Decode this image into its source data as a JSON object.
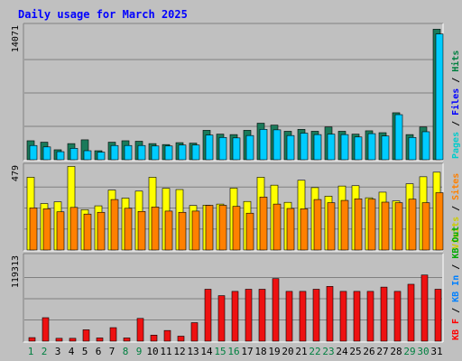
{
  "chart_data": {
    "title": "Daily usage for March 2025",
    "type": "bar",
    "categories": [
      "1",
      "2",
      "3",
      "4",
      "5",
      "6",
      "7",
      "8",
      "9",
      "10",
      "11",
      "12",
      "13",
      "14",
      "15",
      "16",
      "17",
      "18",
      "19",
      "20",
      "21",
      "22",
      "23",
      "24",
      "25",
      "26",
      "27",
      "28",
      "29",
      "30",
      "31"
    ],
    "weekend_days": [
      "1",
      "2",
      "8",
      "9",
      "15",
      "16",
      "22",
      "23",
      "29",
      "30"
    ],
    "panels": [
      {
        "name": "hits-files-pages",
        "max_label": "14071",
        "ylim": [
          0,
          14071
        ],
        "axis_labels": [
          {
            "text": "Pages",
            "color": "#00cccc"
          },
          {
            "text": "Files",
            "color": "#0000ff"
          },
          {
            "text": "Hits",
            "color": "#008040"
          }
        ],
        "series": [
          {
            "name": "Hits",
            "color": "#1a7a5a",
            "values": [
              2000,
              1850,
              1050,
              1700,
              2100,
              950,
              1850,
              2000,
              1950,
              1700,
              1600,
              1800,
              1750,
              3100,
              2700,
              2650,
              3100,
              3850,
              3650,
              3000,
              3200,
              3000,
              3450,
              3000,
              2700,
              3050,
              2850,
              4950,
              2650,
              3450,
              13750
            ]
          },
          {
            "name": "Files",
            "color": "#00ccff",
            "values": [
              1500,
              1350,
              850,
              1200,
              950,
              800,
              1500,
              1500,
              1500,
              1450,
              1450,
              1550,
              1550,
              2600,
              2350,
              2300,
              2550,
              3200,
              3150,
              2550,
              2800,
              2650,
              2700,
              2650,
              2400,
              2750,
              2500,
              4750,
              2350,
              2950,
              13250
            ]
          }
        ]
      },
      {
        "name": "visits-sites",
        "max_label": "479",
        "ylim": [
          0,
          479
        ],
        "axis_labels": [
          {
            "text": "Visits",
            "color": "#cccc00"
          },
          {
            "text": "Sites",
            "color": "#ff8000"
          }
        ],
        "series": [
          {
            "name": "Visits",
            "color": "#ffff00",
            "values": [
              415,
              265,
              275,
              477,
              230,
              252,
              342,
              296,
              336,
              415,
              352,
              345,
              254,
              256,
              262,
              353,
              277,
              415,
              370,
              272,
              398,
              356,
              307,
              365,
              367,
              298,
              330,
              280,
              378,
              418,
              444
            ]
          },
          {
            "name": "Sites",
            "color": "#ff8000",
            "values": [
              240,
              235,
              218,
              243,
              205,
              215,
              288,
              238,
              220,
              245,
              222,
              215,
              222,
              255,
              255,
              249,
              210,
              302,
              262,
              237,
              235,
              288,
              270,
              283,
              292,
              290,
              273,
              270,
              290,
              270,
              327
            ]
          }
        ]
      },
      {
        "name": "kbf",
        "max_label": "119313",
        "ylim": [
          0,
          119313
        ],
        "axis_labels": [
          {
            "text": "KB F",
            "color": "#ff0000"
          },
          {
            "text": "KB In",
            "color": "#0080ff"
          },
          {
            "text": "KB Out",
            "color": "#00aa00"
          }
        ],
        "series": [
          {
            "name": "KB F",
            "color": "#ee1111",
            "values": [
              5000,
              33000,
              4000,
              4000,
              16000,
              4500,
              19000,
              4500,
              32000,
              8500,
              15000,
              7000,
              26000,
              73000,
              64000,
              70000,
              73000,
              73000,
              88000,
              70000,
              70000,
              73000,
              77000,
              70000,
              70000,
              70000,
              76000,
              70000,
              80000,
              93000,
              73000
            ]
          }
        ]
      }
    ]
  }
}
